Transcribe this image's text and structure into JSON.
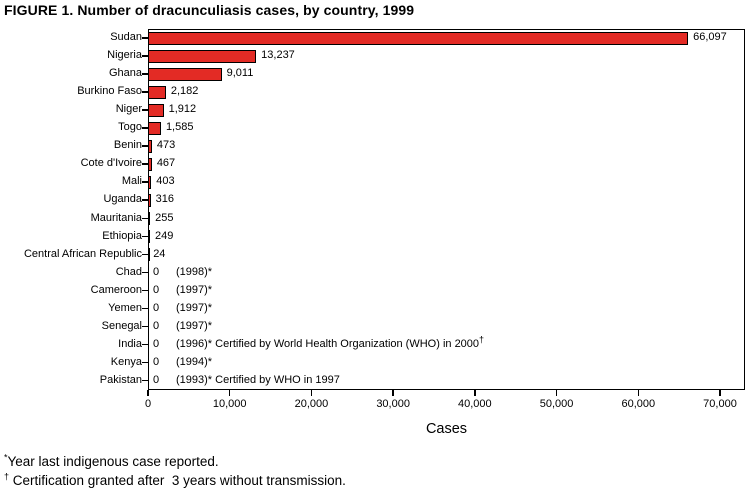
{
  "chart_data": {
    "type": "bar",
    "orientation": "horizontal",
    "title": "FIGURE 1. Number of dracunculiasis cases, by country, 1999",
    "xlabel": "Cases",
    "xlim": [
      0,
      70000
    ],
    "xticks": [
      0,
      10000,
      20000,
      30000,
      40000,
      50000,
      60000,
      70000
    ],
    "xtick_labels": [
      "0",
      "10,000",
      "20,000",
      "30,000",
      "40,000",
      "50,000",
      "60,000",
      "70,000"
    ],
    "grid": false,
    "legend": false,
    "bar_color": "#e32b25",
    "bar_border_color": "#000000",
    "categories": [
      "Sudan",
      "Nigeria",
      "Ghana",
      "Burkino Faso",
      "Niger",
      "Togo",
      "Benin",
      "Cote d'Ivoire",
      "Mali",
      "Uganda",
      "Mauritania",
      "Ethiopia",
      "Central African Republic",
      "Chad",
      "Cameroon",
      "Yemen",
      "Senegal",
      "India",
      "Kenya",
      "Pakistan"
    ],
    "values": [
      66097,
      13237,
      9011,
      2182,
      1912,
      1585,
      473,
      467,
      403,
      316,
      255,
      249,
      24,
      0,
      0,
      0,
      0,
      0,
      0,
      0
    ],
    "value_labels": [
      "66,097",
      "13,237",
      "9,011",
      "2,182",
      "1,912",
      "1,585",
      "473",
      "467",
      "403",
      "316",
      "255",
      "249",
      "24",
      "0",
      "0",
      "0",
      "0",
      "0",
      "0",
      "0"
    ],
    "annotations": [
      "",
      "",
      "",
      "",
      "",
      "",
      "",
      "",
      "",
      "",
      "",
      "",
      "",
      "(1998)*",
      "(1997)*",
      "(1997)*",
      "(1997)*",
      "(1996)* Certified by World Health Organization (WHO) in 2000",
      "(1994)*",
      "(1993)* Certified by WHO in 1997"
    ],
    "annotation_sup": [
      "",
      "",
      "",
      "",
      "",
      "",
      "",
      "",
      "",
      "",
      "",
      "",
      "",
      "",
      "",
      "",
      "",
      "†",
      "",
      ""
    ]
  },
  "footnotes": [
    {
      "marker": "*",
      "text": "Year last indigenous case reported."
    },
    {
      "marker": "†",
      "text": " Certification granted after  3 years without transmission."
    }
  ]
}
